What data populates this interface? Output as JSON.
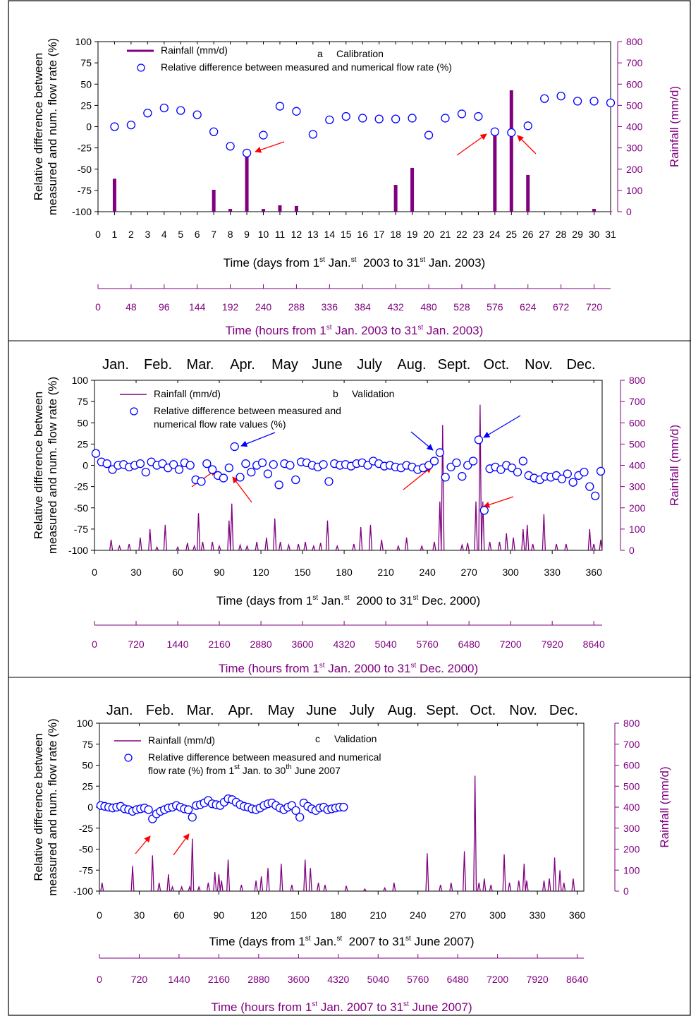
{
  "chart_data": [
    {
      "type": "combo",
      "label": "a",
      "annotation": "Calibration",
      "xlabel": [
        "Time (days from 1",
        "st",
        " Jan.",
        "st",
        "  2003 to 31",
        "st",
        " Jan. 2003)"
      ],
      "ylabel": [
        "Relative difference between",
        "measured and num. flow rate (%)"
      ],
      "y2label": "Rainfall (mm/d)",
      "xlim": [
        0,
        31
      ],
      "xticks": [
        0,
        1,
        2,
        3,
        4,
        5,
        6,
        7,
        8,
        9,
        10,
        11,
        12,
        13,
        14,
        15,
        16,
        17,
        18,
        19,
        20,
        21,
        22,
        23,
        24,
        25,
        26,
        27,
        28,
        29,
        30,
        31
      ],
      "ylim": [
        -100,
        100
      ],
      "yticks": [
        -100,
        -75,
        -50,
        -25,
        0,
        25,
        50,
        75,
        100
      ],
      "y2lim": [
        0,
        800
      ],
      "y2ticks": [
        0,
        100,
        200,
        300,
        400,
        500,
        600,
        700,
        800
      ],
      "hours": {
        "label": [
          "Time (hours from 1",
          "st",
          " Jan. 2003 to 31",
          "st",
          " Jan. 2003)"
        ],
        "lim": [
          0,
          744
        ],
        "ticks": [
          0,
          48,
          96,
          144,
          192,
          240,
          288,
          336,
          384,
          432,
          480,
          528,
          576,
          624,
          672,
          720
        ]
      },
      "series": [
        {
          "name": [
            [
              "Rainfall (mm/d)"
            ]
          ],
          "type": "bar",
          "axis": "y2",
          "color": "#800080",
          "x": [
            1,
            2,
            3,
            4,
            5,
            6,
            7,
            8,
            9,
            10,
            11,
            12,
            13,
            14,
            15,
            16,
            17,
            18,
            19,
            20,
            21,
            22,
            23,
            24,
            25,
            26,
            27,
            28,
            29,
            30,
            31
          ],
          "values": [
            155,
            2,
            0,
            0,
            1,
            0,
            103,
            13,
            282,
            13,
            30,
            27,
            0,
            0,
            0,
            0,
            0,
            126,
            206,
            0,
            0,
            0,
            0,
            375,
            571,
            173,
            0,
            0,
            0,
            13,
            2
          ]
        },
        {
          "name": [
            [
              "Relative difference between measured and numerical flow rate (%)"
            ]
          ],
          "type": "scatter",
          "color": "#0000ff",
          "x": [
            1,
            2,
            3,
            4,
            5,
            6,
            7,
            8,
            9,
            10,
            11,
            12,
            13,
            14,
            15,
            16,
            17,
            18,
            19,
            20,
            21,
            22,
            23,
            24,
            25,
            26,
            27,
            28,
            29,
            30,
            31
          ],
          "values": [
            0,
            2,
            16,
            22,
            19,
            14,
            -6,
            -23,
            -31,
            -10,
            24,
            18,
            -9,
            8,
            12,
            10,
            9,
            9,
            10,
            -10,
            10,
            15,
            12,
            -6,
            -7,
            1,
            33,
            36,
            30,
            30,
            28
          ]
        }
      ]
    },
    {
      "type": "combo",
      "label": "b",
      "annotation": "Validation",
      "months": [
        "Jan.",
        "Feb.",
        "Mar.",
        "Apr.",
        "May",
        "June",
        "July",
        "Aug.",
        "Sept.",
        "Oct.",
        "Nov.",
        "Dec."
      ],
      "xlabel": [
        "Time (days from 1",
        "st",
        " Jan.",
        "st",
        "  2000 to 31",
        "st",
        " Dec. 2000)"
      ],
      "ylabel": [
        "Relative difference between",
        "measured and num. flow rate (%)"
      ],
      "y2label": "Rainfall (mm/d)",
      "xlim": [
        0,
        366
      ],
      "xticks": [
        0,
        30,
        60,
        90,
        120,
        150,
        180,
        210,
        240,
        270,
        300,
        330,
        360
      ],
      "ylim": [
        -100,
        100
      ],
      "yticks": [
        -100,
        -75,
        -50,
        -25,
        0,
        25,
        50,
        75,
        100
      ],
      "y2lim": [
        0,
        800
      ],
      "y2ticks": [
        0,
        100,
        200,
        300,
        400,
        500,
        600,
        700,
        800
      ],
      "hours": {
        "label": [
          "Time (hours from 1",
          "st",
          " Jan. 2000 to 31",
          "st",
          " Dec. 2000)"
        ],
        "lim": [
          0,
          8784
        ],
        "ticks": [
          0,
          720,
          1440,
          2160,
          2880,
          3600,
          4320,
          5040,
          5760,
          6480,
          7200,
          7920,
          8640
        ]
      },
      "series": [
        {
          "name": [
            [
              "Rainfall (mm/d)"
            ]
          ],
          "type": "line",
          "axis": "y2",
          "color": "#800080",
          "x": [
            12,
            18,
            25,
            33,
            40,
            45,
            51,
            60,
            67,
            72,
            75,
            78,
            85,
            90,
            97,
            99,
            105,
            110,
            117,
            124,
            130,
            134,
            140,
            147,
            152,
            158,
            163,
            168,
            175,
            187,
            192,
            199,
            207,
            219,
            225,
            236,
            245,
            249,
            251,
            265,
            269,
            275,
            278,
            280,
            285,
            292,
            297,
            302,
            309,
            312,
            316,
            324,
            333,
            340,
            357,
            360,
            365
          ],
          "values": [
            50,
            20,
            30,
            60,
            100,
            15,
            120,
            15,
            35,
            20,
            175,
            40,
            40,
            20,
            140,
            220,
            25,
            20,
            40,
            60,
            150,
            40,
            25,
            30,
            40,
            20,
            35,
            140,
            20,
            30,
            110,
            120,
            50,
            20,
            60,
            20,
            40,
            230,
            590,
            25,
            35,
            230,
            685,
            230,
            40,
            40,
            80,
            60,
            100,
            120,
            30,
            170,
            30,
            30,
            100,
            30,
            50
          ]
        },
        {
          "name": [
            [
              "Relative difference between measured and"
            ],
            [
              "numerical flow rate values (%)"
            ]
          ],
          "type": "scatter",
          "color": "#0000ff",
          "x": [
            1,
            5,
            9,
            13,
            17,
            21,
            25,
            29,
            33,
            37,
            41,
            45,
            49,
            53,
            57,
            61,
            65,
            69,
            73,
            77,
            81,
            85,
            89,
            93,
            97,
            101,
            105,
            109,
            113,
            117,
            121,
            125,
            129,
            133,
            137,
            141,
            145,
            149,
            153,
            157,
            161,
            165,
            169,
            173,
            177,
            181,
            185,
            189,
            193,
            197,
            201,
            205,
            209,
            213,
            217,
            221,
            225,
            229,
            233,
            237,
            241,
            245,
            249,
            253,
            257,
            261,
            265,
            269,
            273,
            277,
            281,
            285,
            289,
            293,
            297,
            301,
            305,
            309,
            313,
            317,
            321,
            325,
            329,
            333,
            337,
            341,
            345,
            349,
            353,
            357,
            361,
            365
          ],
          "values": [
            14,
            4,
            2,
            -5,
            0,
            1,
            -2,
            0,
            2,
            -8,
            4,
            0,
            2,
            -3,
            1,
            -5,
            3,
            0,
            -17,
            -19,
            2,
            -5,
            -12,
            -15,
            -3,
            22,
            -14,
            2,
            -8,
            0,
            3,
            -10,
            1,
            -23,
            2,
            0,
            -17,
            4,
            3,
            0,
            -2,
            1,
            -19,
            2,
            0,
            1,
            -1,
            2,
            3,
            0,
            5,
            2,
            -1,
            0,
            -2,
            -3,
            0,
            -2,
            -5,
            -3,
            0,
            5,
            15,
            -14,
            -2,
            3,
            -13,
            0,
            5,
            30,
            -53,
            -4,
            -2,
            -5,
            0,
            -3,
            -8,
            5,
            -12,
            -15,
            -17,
            -13,
            -14,
            -12,
            -16,
            -10,
            -20,
            -12,
            -8,
            -25,
            -36,
            -7
          ]
        }
      ]
    },
    {
      "type": "combo",
      "label": "c",
      "annotation": "Validation",
      "months": [
        "Jan.",
        "Feb.",
        "Mar.",
        "Apr.",
        "May",
        "June",
        "July",
        "Aug.",
        "Sept.",
        "Oct.",
        "Nov.",
        "Dec."
      ],
      "xlabel": [
        "Time (days from 1",
        "st",
        " Jan.",
        "st",
        "  2007 to 31",
        "st",
        " June 2007)"
      ],
      "ylabel": [
        "Relative difference between",
        "measured and num. flow rate (%)"
      ],
      "y2label": "Rainfall (mm/d)",
      "xlim": [
        0,
        365
      ],
      "xticks": [
        0,
        30,
        60,
        90,
        120,
        150,
        180,
        210,
        240,
        270,
        300,
        330,
        360
      ],
      "ylim": [
        -100,
        100
      ],
      "yticks": [
        -100,
        -75,
        -50,
        -25,
        0,
        25,
        50,
        75,
        100
      ],
      "y2lim": [
        0,
        800
      ],
      "y2ticks": [
        0,
        100,
        200,
        300,
        400,
        500,
        600,
        700,
        800
      ],
      "hours": {
        "label": [
          "Time (hours from 1",
          "st",
          " Jan. 2007 to 31",
          "st",
          " June 2007)"
        ],
        "lim": [
          0,
          8760
        ],
        "ticks": [
          0,
          720,
          1440,
          2160,
          2880,
          3600,
          4320,
          5040,
          5760,
          6480,
          7200,
          7920,
          8640
        ]
      },
      "series": [
        {
          "name": [
            [
              "Rainfall (mm/d)"
            ]
          ],
          "type": "line",
          "axis": "y2",
          "color": "#800080",
          "x": [
            2,
            25,
            40,
            45,
            52,
            55,
            62,
            68,
            70,
            75,
            82,
            87,
            90,
            92,
            97,
            107,
            118,
            122,
            127,
            137,
            145,
            155,
            159,
            165,
            170,
            186,
            200,
            215,
            222,
            247,
            257,
            265,
            275,
            283,
            286,
            290,
            295,
            305,
            309,
            316,
            320,
            322,
            335,
            339,
            343,
            347,
            350,
            357
          ],
          "values": [
            40,
            120,
            170,
            40,
            80,
            20,
            20,
            20,
            250,
            20,
            40,
            90,
            80,
            50,
            150,
            30,
            50,
            70,
            110,
            130,
            30,
            150,
            110,
            40,
            30,
            25,
            10,
            15,
            40,
            180,
            30,
            40,
            190,
            550,
            40,
            60,
            30,
            175,
            40,
            50,
            130,
            50,
            50,
            60,
            160,
            100,
            40,
            60
          ]
        },
        {
          "name": [
            [
              "Relative difference between measured and numerical"
            ],
            [
              "flow rate (%) from 1",
              "st",
              " Jan. to 30",
              "th",
              " June 2007"
            ]
          ],
          "type": "scatter",
          "color": "#0000ff",
          "x": [
            1,
            4,
            7,
            10,
            13,
            16,
            19,
            22,
            25,
            28,
            31,
            34,
            37,
            40,
            43,
            46,
            49,
            52,
            55,
            58,
            61,
            64,
            67,
            70,
            73,
            76,
            79,
            82,
            85,
            88,
            91,
            94,
            97,
            100,
            103,
            106,
            109,
            112,
            115,
            118,
            121,
            124,
            127,
            130,
            133,
            136,
            139,
            142,
            145,
            148,
            151,
            154,
            157,
            160,
            163,
            166,
            169,
            172,
            175,
            178,
            181,
            184
          ],
          "values": [
            2,
            1,
            0,
            -1,
            0,
            1,
            -2,
            -3,
            -5,
            -3,
            -2,
            -1,
            -3,
            -14,
            -8,
            -5,
            -3,
            -1,
            0,
            2,
            0,
            -2,
            -3,
            -12,
            2,
            3,
            5,
            8,
            4,
            3,
            2,
            6,
            10,
            9,
            6,
            3,
            1,
            0,
            -2,
            -3,
            -1,
            2,
            4,
            5,
            2,
            -1,
            -3,
            0,
            2,
            -4,
            -12,
            5,
            1,
            -2,
            -4,
            -1,
            0,
            -3,
            -2,
            -1,
            0,
            0
          ]
        }
      ]
    }
  ]
}
